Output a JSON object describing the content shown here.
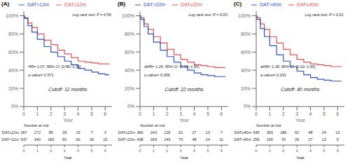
{
  "chart_data": [
    {
      "type": "step",
      "title": "(A)",
      "xlabel": "Year",
      "xlim": [
        0,
        6.5
      ],
      "xticks": [
        0,
        1,
        2,
        3,
        4,
        5,
        6
      ],
      "ylim": [
        0.0,
        1.05
      ],
      "yticks": [
        {
          "value": 0.0,
          "label": "0%"
        },
        {
          "value": 0.2,
          "label": "20%"
        },
        {
          "value": 0.4,
          "label": "40%"
        },
        {
          "value": 0.6,
          "label": "60%"
        },
        {
          "value": 0.8,
          "label": "80%"
        },
        {
          "value": 1.0,
          "label": "100%"
        }
      ],
      "grid": false,
      "legend": "top",
      "x": [
        0,
        0.05,
        0.3,
        0.6,
        1.0,
        1.5,
        2.0,
        2.5,
        3.0,
        3.5,
        4.0,
        4.5,
        5.0,
        5.5,
        6.0,
        6.3
      ],
      "series": [
        {
          "name": "DAT≤12m",
          "color": "#e05050",
          "values": [
            1.0,
            0.98,
            0.92,
            0.87,
            0.8,
            0.73,
            0.68,
            0.62,
            0.58,
            0.54,
            0.5,
            0.49,
            0.48,
            0.47,
            0.47,
            0.47
          ]
        },
        {
          "name": "DAT>12m",
          "color": "#3050c0",
          "values": [
            1.0,
            0.97,
            0.89,
            0.82,
            0.74,
            0.66,
            0.6,
            0.55,
            0.5,
            0.46,
            0.42,
            0.4,
            0.38,
            0.36,
            0.35,
            0.35
          ]
        }
      ],
      "annotations": [
        "Log rank test: P = 0.56",
        "HR= 1.07, 95% CI: [0.85–1.35]",
        "p-value= 0.571",
        "Cutoff: 12 months"
      ],
      "risk_table": {
        "title": "Number at risk",
        "rows": [
          {
            "name": "DAT≤12m",
            "values": [
              267,
              172,
              85,
              39,
              15,
              7,
              3
            ]
          },
          {
            "name": "DAT>12m",
            "values": [
              537,
              340,
              183,
              92,
              60,
              30,
              15
            ]
          }
        ]
      }
    },
    {
      "type": "step",
      "title": "(B)",
      "xlabel": "Year",
      "xlim": [
        0,
        6.5
      ],
      "xticks": [
        0,
        1,
        2,
        3,
        4,
        5,
        6
      ],
      "ylim": [
        0.0,
        1.05
      ],
      "yticks": [
        {
          "value": 0.0,
          "label": "0%"
        },
        {
          "value": 0.2,
          "label": "20%"
        },
        {
          "value": 0.4,
          "label": "40%"
        },
        {
          "value": 0.6,
          "label": "60%"
        },
        {
          "value": 0.8,
          "label": "80%"
        },
        {
          "value": 1.0,
          "label": "100%"
        }
      ],
      "grid": false,
      "legend": "top",
      "x": [
        0,
        0.05,
        0.3,
        0.6,
        1.0,
        1.5,
        2.0,
        2.5,
        3.0,
        3.5,
        4.0,
        4.5,
        5.0,
        5.5,
        6.0,
        6.3
      ],
      "series": [
        {
          "name": "DAT≤22m",
          "color": "#e05050",
          "values": [
            1.0,
            0.98,
            0.91,
            0.85,
            0.77,
            0.7,
            0.63,
            0.57,
            0.52,
            0.49,
            0.46,
            0.45,
            0.44,
            0.43,
            0.43,
            0.43
          ]
        },
        {
          "name": "DAT>22m",
          "color": "#3050c0",
          "values": [
            1.0,
            0.96,
            0.88,
            0.8,
            0.71,
            0.62,
            0.55,
            0.49,
            0.44,
            0.4,
            0.37,
            0.35,
            0.34,
            0.33,
            0.33,
            0.33
          ]
        }
      ],
      "annotations": [
        "Log rank test: P = 0.03",
        "aHR= 1.24, 95% CI: [0.99–1.55]",
        "p-value= 0.056",
        "Cutoff: 22 months"
      ],
      "risk_table": {
        "title": "Number at risk",
        "rows": [
          {
            "name": "DAT≤22m",
            "values": [
              366,
              243,
              125,
              61,
              27,
              13,
              7
            ]
          },
          {
            "name": "DAT>22m",
            "values": [
              438,
              269,
              143,
              70,
              48,
              24,
              11
            ]
          }
        ]
      }
    },
    {
      "type": "step",
      "title": "(C)",
      "xlabel": "Year",
      "xlim": [
        0,
        6.5
      ],
      "xticks": [
        0,
        1,
        2,
        3,
        4,
        5,
        6
      ],
      "ylim": [
        0.0,
        1.05
      ],
      "yticks": [
        {
          "value": 0.0,
          "label": "0%"
        },
        {
          "value": 0.2,
          "label": "20%"
        },
        {
          "value": 0.4,
          "label": "40%"
        },
        {
          "value": 0.6,
          "label": "60%"
        },
        {
          "value": 0.8,
          "label": "80%"
        },
        {
          "value": 1.0,
          "label": "100%"
        }
      ],
      "grid": false,
      "legend": "top",
      "x": [
        0,
        0.05,
        0.3,
        0.6,
        1.0,
        1.5,
        2.0,
        2.5,
        3.0,
        3.5,
        4.0,
        4.5,
        5.0,
        5.5,
        6.0,
        6.3
      ],
      "series": [
        {
          "name": "DAT≤40m",
          "color": "#e05050",
          "values": [
            1.0,
            0.98,
            0.91,
            0.85,
            0.77,
            0.7,
            0.63,
            0.57,
            0.52,
            0.49,
            0.47,
            0.46,
            0.45,
            0.44,
            0.44,
            0.44
          ]
        },
        {
          "name": "DAT>40m",
          "color": "#3050c0",
          "values": [
            1.0,
            0.96,
            0.86,
            0.77,
            0.67,
            0.57,
            0.5,
            0.44,
            0.39,
            0.35,
            0.32,
            0.3,
            0.29,
            0.28,
            0.28,
            0.28
          ]
        }
      ],
      "annotations": [
        "Log rank test: P = 0.01",
        "aHR= 1.28, 95% CI: [1.02–1.60]",
        "p-value= 0.031",
        "Cutoff: 40 months"
      ],
      "risk_table": {
        "title": "Number at risk",
        "rows": [
          {
            "name": "DAT≤40m",
            "values": [
              545,
              356,
              189,
              92,
              48,
              24,
              13
            ]
          },
          {
            "name": "DAT>40m",
            "values": [
              259,
              156,
              79,
              39,
              27,
              13,
              5
            ]
          }
        ]
      }
    }
  ]
}
